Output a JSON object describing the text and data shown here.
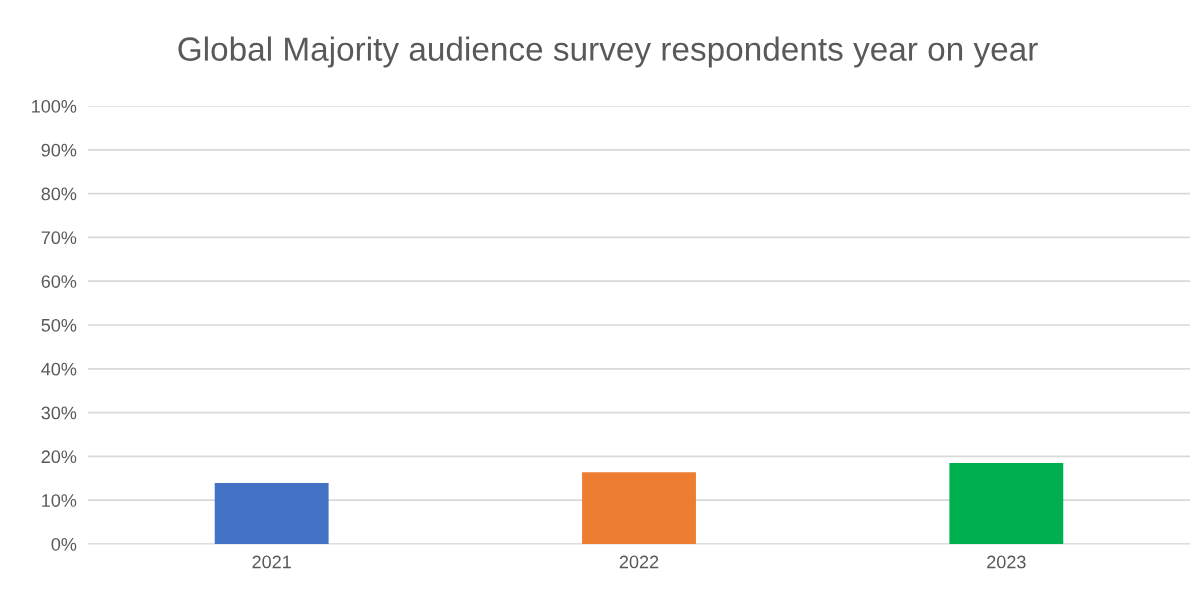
{
  "chart_data": {
    "type": "bar",
    "title": "Global Majority audience survey respondents year on year",
    "categories": [
      "2021",
      "2022",
      "2023"
    ],
    "values": [
      13.9,
      16.4,
      18.5
    ],
    "colors": [
      "#4472c4",
      "#ed7d31",
      "#00b050"
    ],
    "ylim": [
      0,
      100
    ],
    "yticks": [
      {
        "value": 0,
        "label": "0%"
      },
      {
        "value": 10,
        "label": "10%"
      },
      {
        "value": 20,
        "label": "20%"
      },
      {
        "value": 30,
        "label": "30%"
      },
      {
        "value": 40,
        "label": "40%"
      },
      {
        "value": 50,
        "label": "50%"
      },
      {
        "value": 60,
        "label": "60%"
      },
      {
        "value": 70,
        "label": "70%"
      },
      {
        "value": 80,
        "label": "80%"
      },
      {
        "value": 90,
        "label": "90%"
      },
      {
        "value": 100,
        "label": "100%"
      }
    ],
    "grid": "y",
    "legend": false
  }
}
